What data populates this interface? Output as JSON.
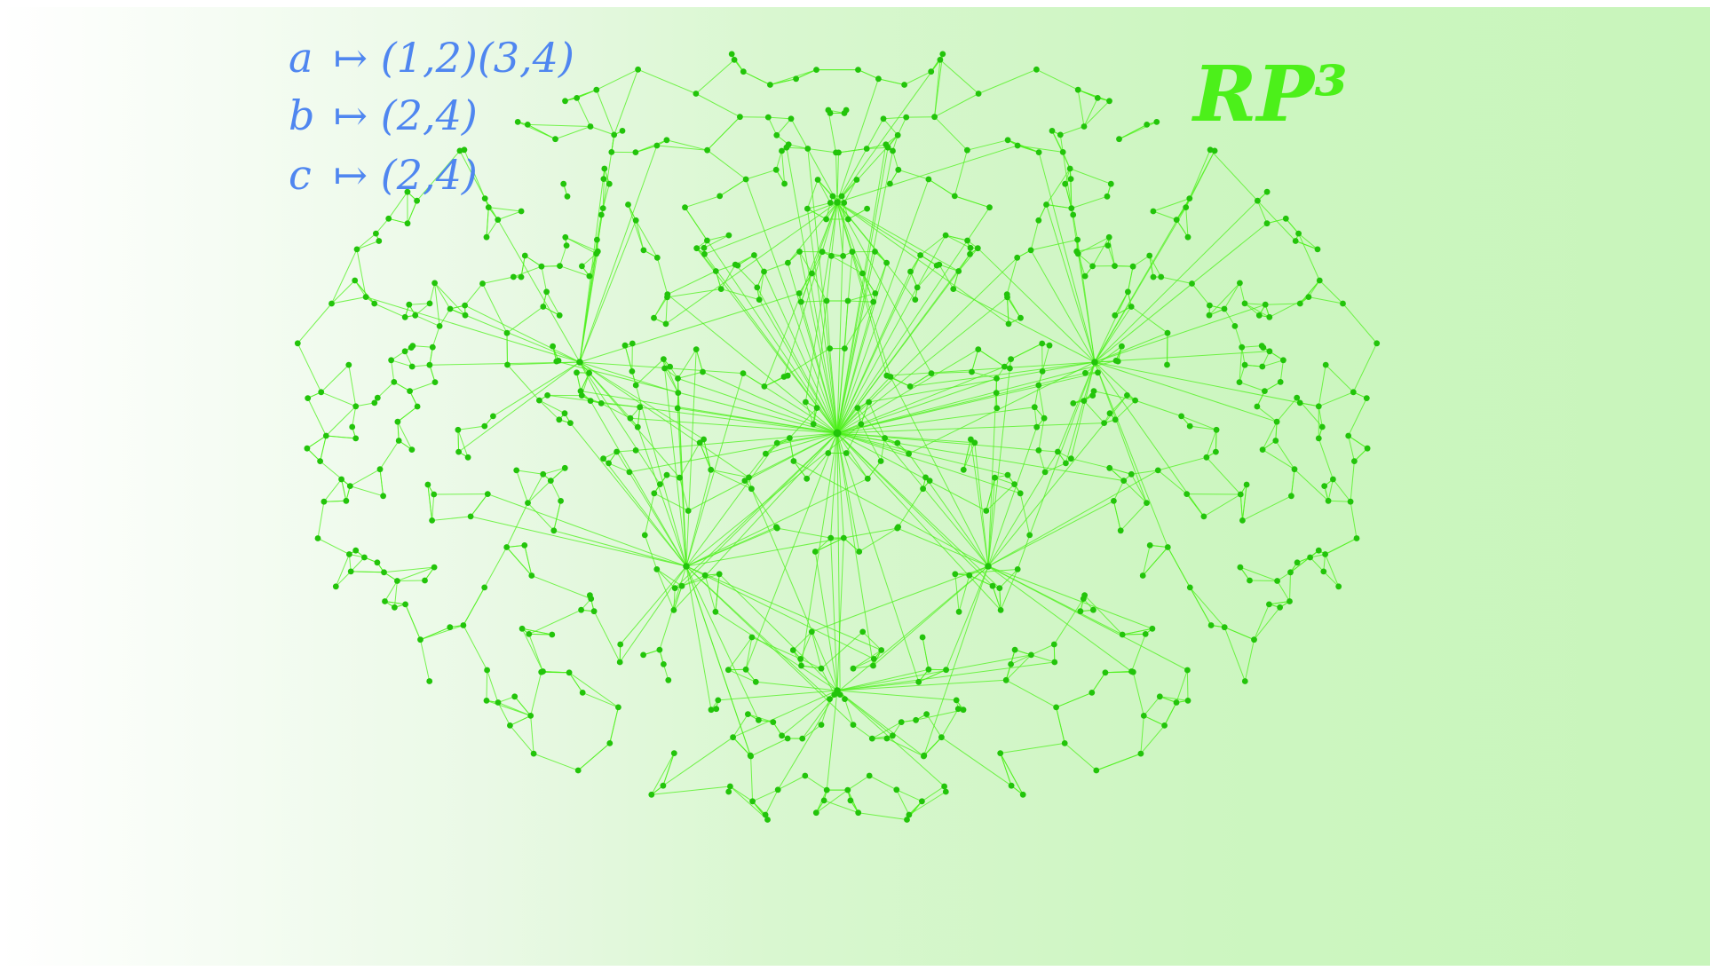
{
  "relations": [
    {
      "generator": "a",
      "permutation": "(1,2)(3,4)"
    },
    {
      "generator": "b",
      "permutation": "(2,4)"
    },
    {
      "generator": "c",
      "permutation": "(2,4)"
    }
  ],
  "maps_to_symbol": "↦",
  "title": "RP³",
  "colors": {
    "edge": "#4cf01a",
    "node": "#22c40a",
    "text": "#4f86f0",
    "title": "#4cf01a"
  }
}
